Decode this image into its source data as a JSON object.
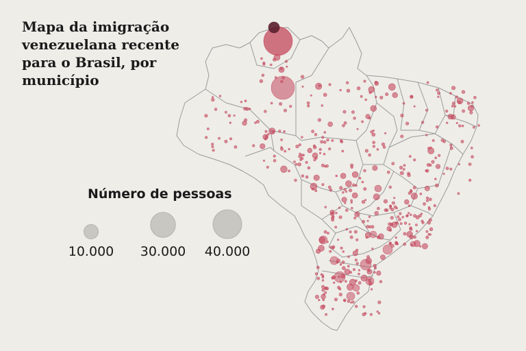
{
  "title_lines": [
    "Mapa da imigração",
    "venezuelana recente",
    "para o Brasil, por",
    "município"
  ],
  "legend": {
    "title": "Número de pessoas",
    "items": [
      {
        "label": "10.000",
        "value": 10000
      },
      {
        "label": "30.000",
        "value": 30000
      },
      {
        "label": "40.000",
        "value": 40000
      }
    ]
  },
  "colors": {
    "background": "#eeede8",
    "state_border": "#9a9a9a",
    "point_fill": "#c4485e",
    "legend_circle": "#c9c7c2",
    "highlight_dark": "#5a1f2e"
  }
}
